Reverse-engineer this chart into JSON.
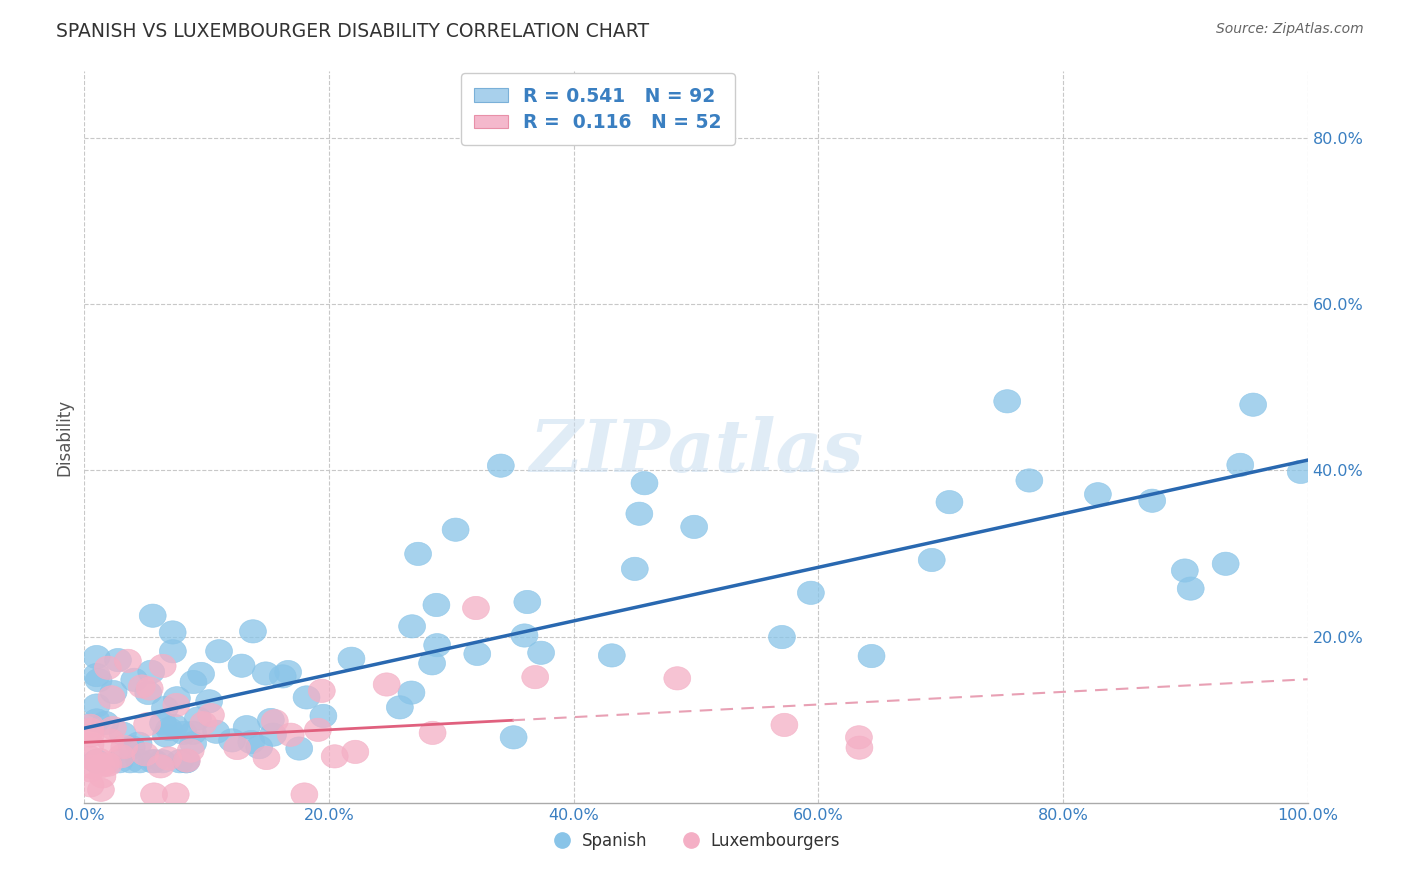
{
  "title": "SPANISH VS LUXEMBOURGER DISABILITY CORRELATION CHART",
  "source": "Source: ZipAtlas.com",
  "ylabel": "Disability",
  "xlim": [
    0.0,
    1.0
  ],
  "ylim": [
    0.0,
    0.88
  ],
  "xtick_labels": [
    "0.0%",
    "20.0%",
    "40.0%",
    "60.0%",
    "80.0%",
    "100.0%"
  ],
  "xtick_vals": [
    0.0,
    0.2,
    0.4,
    0.6,
    0.8,
    1.0
  ],
  "ytick_labels": [
    "20.0%",
    "40.0%",
    "60.0%",
    "80.0%"
  ],
  "ytick_vals": [
    0.2,
    0.4,
    0.6,
    0.8
  ],
  "spanish_color": "#89c4e8",
  "luxembourger_color": "#f4afc5",
  "spanish_R": 0.541,
  "spanish_N": 92,
  "luxembourger_R": 0.116,
  "luxembourger_N": 52,
  "trend_blue_color": "#2968b0",
  "trend_pink_solid_color": "#e0607e",
  "trend_pink_dash_color": "#e8a0b4",
  "background_color": "#ffffff",
  "grid_color": "#c8c8c8",
  "watermark_text": "ZIPatlas",
  "legend_label_spanish": "Spanish",
  "legend_label_lux": "Luxembourgers",
  "title_color": "#333333",
  "source_color": "#666666",
  "axis_label_color": "#3a7fc1",
  "tick_label_color": "#3a7fc1"
}
